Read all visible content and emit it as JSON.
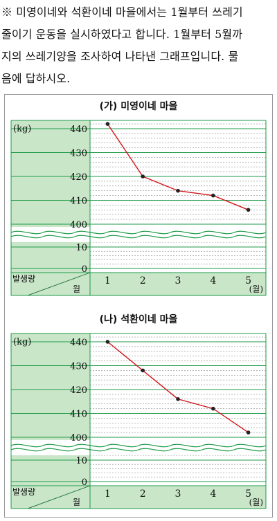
{
  "problem": {
    "lines": [
      "※ 미영이네와 석환이네 마을에서는 1월부터 쓰레기",
      "줄이기 운동을 실시하였다고 합니다. 1월부터 5월까",
      "지의 쓰레기양을 조사하여 나타낸 그래프입니다. 물",
      "음에 답하시오."
    ]
  },
  "colors": {
    "panel": "#c9e6c8",
    "grid_major": "#1d9a47",
    "grid_minor": "#8a8a8a",
    "line": "#d0161b",
    "point": "#222222"
  },
  "chart_data": [
    {
      "type": "line",
      "title": "(가) 미영이네 마을",
      "ylabel_unit": "(kg)",
      "xlabel_unit": "(월)",
      "corner_top": "발생량",
      "corner_bottom": "월",
      "categories": [
        "1",
        "2",
        "3",
        "4",
        "5"
      ],
      "values": [
        442,
        420,
        414,
        412,
        406
      ],
      "y_ticks": [
        "440",
        "430",
        "420",
        "410",
        "400",
        "10",
        "0"
      ],
      "ylim": [
        400,
        442
      ],
      "axis_break": "0–400",
      "grid": true
    },
    {
      "type": "line",
      "title": "(나) 석환이네 마을",
      "ylabel_unit": "(kg)",
      "xlabel_unit": "(월)",
      "corner_top": "발생량",
      "corner_bottom": "월",
      "categories": [
        "1",
        "2",
        "3",
        "4",
        "5"
      ],
      "values": [
        440,
        428,
        416,
        412,
        402
      ],
      "y_ticks": [
        "440",
        "430",
        "420",
        "410",
        "400",
        "10",
        "0"
      ],
      "ylim": [
        400,
        442
      ],
      "axis_break": "0–400",
      "grid": true
    }
  ]
}
